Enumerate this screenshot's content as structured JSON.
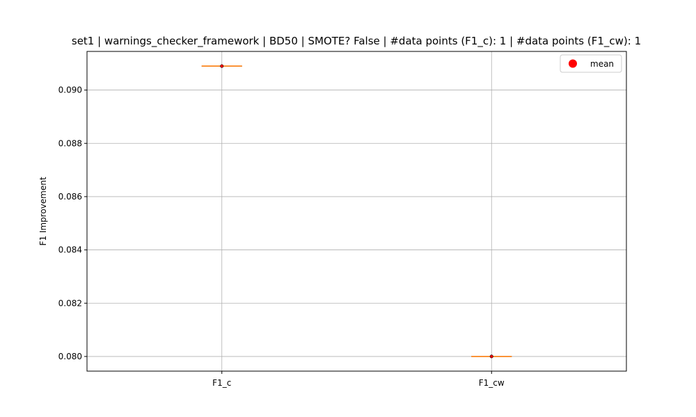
{
  "chart_data": {
    "type": "box",
    "title": "set1 | warnings_checker_framework | BD50 | SMOTE? False | #data points (F1_c): 1 | #data points (F1_cw): 1",
    "xlabel": "",
    "ylabel": "F1 Improvement",
    "categories": [
      "F1_c",
      "F1_cw"
    ],
    "values": [
      0.0909,
      0.08
    ],
    "means": [
      0.0909,
      0.08
    ],
    "ylim": [
      0.07945,
      0.09145
    ],
    "yticks": [
      0.08,
      0.082,
      0.084,
      0.086,
      0.088,
      0.09
    ],
    "ytick_labels": [
      "0.080",
      "0.082",
      "0.084",
      "0.086",
      "0.088",
      "0.090"
    ],
    "grid": true,
    "legend": {
      "placement": "upper-right",
      "entries": [
        {
          "label": "mean",
          "color": "#ff0000",
          "marker": "circle"
        }
      ]
    },
    "colors": {
      "median_line": "#ff7f0e",
      "box_line": "#000000",
      "mean_marker": "#ff0000",
      "grid": "#b0b0b0"
    }
  }
}
